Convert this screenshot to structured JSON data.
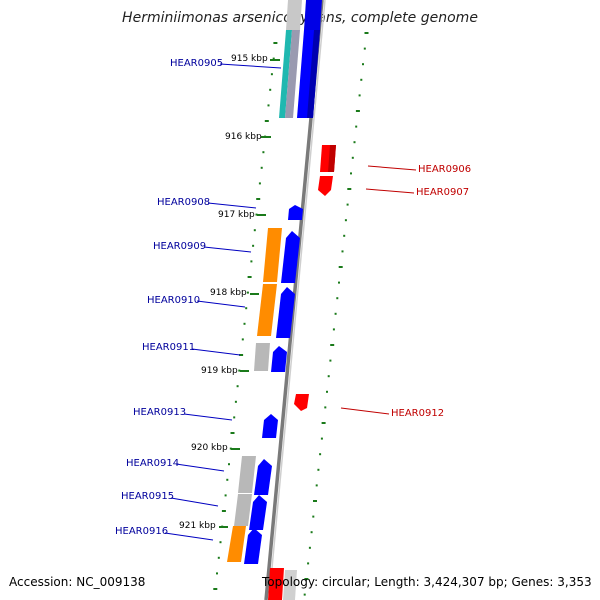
{
  "title": "Herminiimonas arsenicoxydans, complete genome",
  "footer": {
    "accession": "Accession: NC_009138",
    "summary": "Topology: circular; Length: 3,424,307 bp; Genes: 3,353"
  },
  "colors": {
    "forward_gene": "#0000ff",
    "reverse_gene": "#ff0000",
    "label_forward": "#00009c",
    "label_reverse": "#c00000",
    "tick": "#1a7a1a",
    "backbone": "#808080",
    "orange_feature": "#ff8c00",
    "gray_feature": "#b8b8b8",
    "cyan_feature": "#20b2aa"
  },
  "kbp_labels": [
    "915 kbp",
    "916 kbp",
    "917 kbp",
    "918 kbp",
    "919 kbp",
    "920 kbp",
    "921 kbp"
  ],
  "genes_left": [
    "HEAR0905",
    "HEAR0908",
    "HEAR0909",
    "HEAR0910",
    "HEAR0911",
    "HEAR0913",
    "HEAR0914",
    "HEAR0915",
    "HEAR0916"
  ],
  "genes_right": [
    "HEAR0906",
    "HEAR0907",
    "HEAR0912"
  ]
}
